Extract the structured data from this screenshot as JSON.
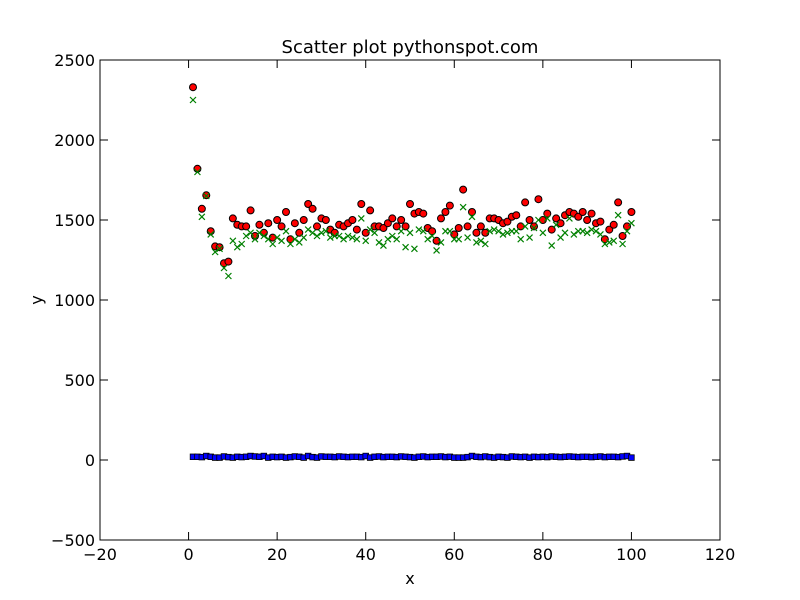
{
  "chart_data": {
    "type": "scatter",
    "title": "Scatter plot pythonspot.com",
    "xlabel": "x",
    "ylabel": "y",
    "xlim": [
      -20,
      120
    ],
    "ylim": [
      -500,
      2500
    ],
    "xticks": [
      -20,
      0,
      20,
      40,
      60,
      80,
      100,
      120
    ],
    "yticks": [
      -500,
      0,
      500,
      1000,
      1500,
      2000,
      2500
    ],
    "xtick_labels": [
      "−20",
      "0",
      "20",
      "40",
      "60",
      "80",
      "100",
      "120"
    ],
    "ytick_labels": [
      "−500",
      "0",
      "500",
      "1000",
      "1500",
      "2000",
      "2500"
    ],
    "grid": false,
    "legend": "none",
    "series": [
      {
        "marker": "circle",
        "color": "#ff0000",
        "edge": "#000000",
        "x": [
          1,
          2,
          3,
          4,
          5,
          6,
          7,
          8,
          9,
          10,
          11,
          12,
          13,
          14,
          15,
          16,
          17,
          18,
          19,
          20,
          21,
          22,
          23,
          24,
          25,
          26,
          27,
          28,
          29,
          30,
          31,
          32,
          33,
          34,
          35,
          36,
          37,
          38,
          39,
          40,
          41,
          42,
          43,
          44,
          45,
          46,
          47,
          48,
          49,
          50,
          51,
          52,
          53,
          54,
          55,
          56,
          57,
          58,
          59,
          60,
          61,
          62,
          63,
          64,
          65,
          66,
          67,
          68,
          69,
          70,
          71,
          72,
          73,
          74,
          75,
          76,
          77,
          78,
          79,
          80,
          81,
          82,
          83,
          84,
          85,
          86,
          87,
          88,
          89,
          90,
          91,
          92,
          93,
          94,
          95,
          96,
          97,
          98,
          99,
          100
        ],
        "y": [
          2330,
          1820,
          1570,
          1655,
          1430,
          1335,
          1330,
          1230,
          1240,
          1510,
          1470,
          1460,
          1460,
          1560,
          1400,
          1470,
          1420,
          1480,
          1390,
          1500,
          1460,
          1550,
          1380,
          1480,
          1420,
          1500,
          1600,
          1570,
          1460,
          1510,
          1500,
          1440,
          1420,
          1470,
          1460,
          1480,
          1500,
          1440,
          1600,
          1420,
          1560,
          1460,
          1460,
          1450,
          1480,
          1510,
          1460,
          1500,
          1460,
          1600,
          1540,
          1550,
          1540,
          1450,
          1430,
          1370,
          1510,
          1550,
          1590,
          1410,
          1450,
          1690,
          1460,
          1550,
          1420,
          1460,
          1420,
          1510,
          1510,
          1500,
          1480,
          1490,
          1520,
          1530,
          1460,
          1610,
          1500,
          1460,
          1630,
          1500,
          1540,
          1440,
          1510,
          1480,
          1530,
          1550,
          1540,
          1520,
          1550,
          1500,
          1540,
          1480,
          1490,
          1380,
          1440,
          1470,
          1610,
          1400,
          1460,
          1550
        ]
      },
      {
        "marker": "x",
        "color": "#008000",
        "x": [
          1,
          2,
          3,
          4,
          5,
          6,
          7,
          8,
          9,
          10,
          11,
          12,
          13,
          14,
          15,
          16,
          17,
          18,
          19,
          20,
          21,
          22,
          23,
          24,
          25,
          26,
          27,
          28,
          29,
          30,
          31,
          32,
          33,
          34,
          35,
          36,
          37,
          38,
          39,
          40,
          41,
          42,
          43,
          44,
          45,
          46,
          47,
          48,
          49,
          50,
          51,
          52,
          53,
          54,
          55,
          56,
          57,
          58,
          59,
          60,
          61,
          62,
          63,
          64,
          65,
          66,
          67,
          68,
          69,
          70,
          71,
          72,
          73,
          74,
          75,
          76,
          77,
          78,
          79,
          80,
          81,
          82,
          83,
          84,
          85,
          86,
          87,
          88,
          89,
          90,
          91,
          92,
          93,
          94,
          95,
          96,
          97,
          98,
          99,
          100
        ],
        "y": [
          2250,
          1800,
          1520,
          1650,
          1410,
          1300,
          1320,
          1200,
          1150,
          1370,
          1330,
          1350,
          1400,
          1420,
          1380,
          1420,
          1400,
          1380,
          1350,
          1390,
          1370,
          1430,
          1350,
          1380,
          1360,
          1390,
          1440,
          1420,
          1400,
          1420,
          1430,
          1390,
          1400,
          1400,
          1380,
          1400,
          1390,
          1380,
          1510,
          1370,
          1440,
          1420,
          1360,
          1340,
          1380,
          1400,
          1380,
          1430,
          1330,
          1420,
          1320,
          1440,
          1430,
          1380,
          1400,
          1310,
          1360,
          1430,
          1430,
          1380,
          1380,
          1580,
          1390,
          1520,
          1360,
          1370,
          1350,
          1430,
          1440,
          1430,
          1410,
          1420,
          1430,
          1430,
          1380,
          1460,
          1390,
          1450,
          1500,
          1420,
          1510,
          1340,
          1470,
          1390,
          1420,
          1510,
          1410,
          1430,
          1430,
          1420,
          1440,
          1430,
          1410,
          1350,
          1360,
          1370,
          1530,
          1350,
          1430,
          1480
        ]
      },
      {
        "marker": "square",
        "color": "#0000ff",
        "edge": "#000000",
        "x": [
          1,
          2,
          3,
          4,
          5,
          6,
          7,
          8,
          9,
          10,
          11,
          12,
          13,
          14,
          15,
          16,
          17,
          18,
          19,
          20,
          21,
          22,
          23,
          24,
          25,
          26,
          27,
          28,
          29,
          30,
          31,
          32,
          33,
          34,
          35,
          36,
          37,
          38,
          39,
          40,
          41,
          42,
          43,
          44,
          45,
          46,
          47,
          48,
          49,
          50,
          51,
          52,
          53,
          54,
          55,
          56,
          57,
          58,
          59,
          60,
          61,
          62,
          63,
          64,
          65,
          66,
          67,
          68,
          69,
          70,
          71,
          72,
          73,
          74,
          75,
          76,
          77,
          78,
          79,
          80,
          81,
          82,
          83,
          84,
          85,
          86,
          87,
          88,
          89,
          90,
          91,
          92,
          93,
          94,
          95,
          96,
          97,
          98,
          99,
          100
        ],
        "y": [
          20,
          20,
          18,
          25,
          20,
          15,
          15,
          22,
          18,
          15,
          20,
          18,
          20,
          25,
          22,
          20,
          25,
          15,
          20,
          18,
          20,
          15,
          18,
          22,
          20,
          15,
          25,
          18,
          15,
          22,
          20,
          20,
          18,
          22,
          20,
          18,
          20,
          20,
          18,
          25,
          15,
          20,
          22,
          18,
          20,
          20,
          18,
          22,
          20,
          18,
          15,
          20,
          22,
          18,
          20,
          20,
          22,
          18,
          20,
          15,
          15,
          15,
          18,
          25,
          20,
          18,
          22,
          18,
          15,
          20,
          18,
          15,
          22,
          20,
          18,
          20,
          15,
          20,
          18,
          20,
          18,
          22,
          20,
          18,
          20,
          22,
          20,
          18,
          20,
          20,
          18,
          20,
          22,
          18,
          20,
          20,
          18,
          22,
          25,
          15
        ]
      }
    ]
  }
}
